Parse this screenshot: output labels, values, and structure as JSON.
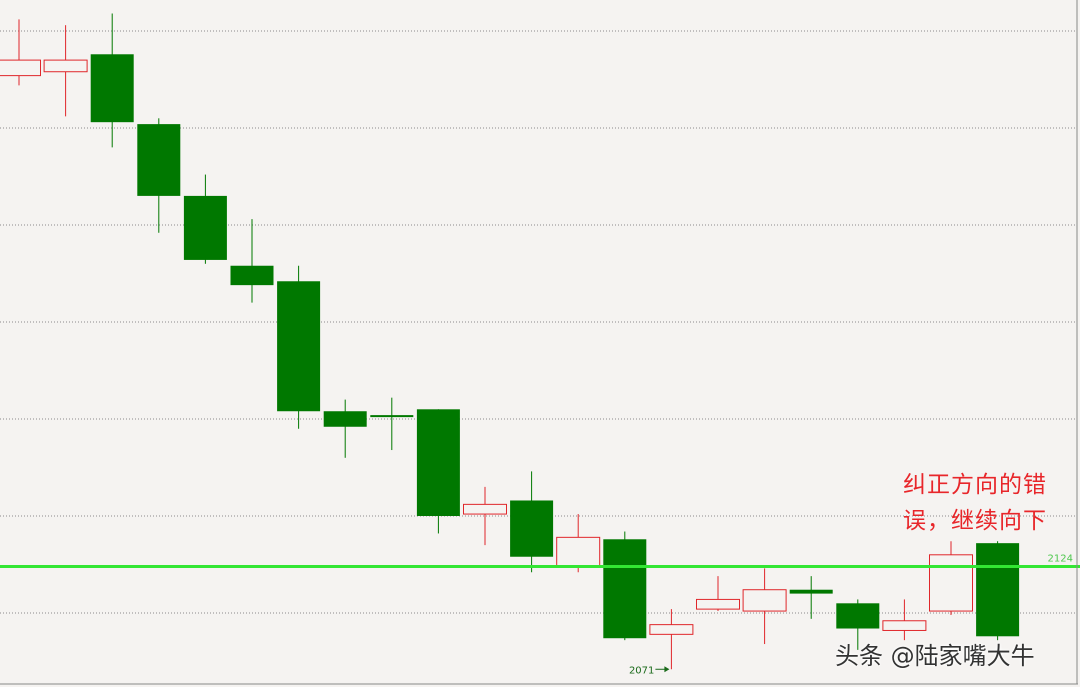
{
  "chart_data": {
    "type": "candlestick",
    "title": "",
    "xlabel": "",
    "ylabel": "",
    "ylim": [
      2065,
      2416
    ],
    "grid": true,
    "grid_levels": [
      2100,
      2150,
      2200,
      2250,
      2300,
      2350,
      2400
    ],
    "colors": {
      "up": "#e0262a",
      "down": "#007800",
      "reference_line": "#33e633",
      "background": "#f5f3f1"
    },
    "candles": [
      {
        "open": 2377,
        "high": 2406,
        "low": 2372,
        "close": 2385
      },
      {
        "open": 2379,
        "high": 2403,
        "low": 2356,
        "close": 2385
      },
      {
        "open": 2388,
        "high": 2409,
        "low": 2340,
        "close": 2353
      },
      {
        "open": 2352,
        "high": 2355,
        "low": 2296,
        "close": 2315
      },
      {
        "open": 2315,
        "high": 2326,
        "low": 2280,
        "close": 2282
      },
      {
        "open": 2279,
        "high": 2303,
        "low": 2260,
        "close": 2269
      },
      {
        "open": 2271,
        "high": 2279,
        "low": 2195,
        "close": 2204
      },
      {
        "open": 2204,
        "high": 2210,
        "low": 2180,
        "close": 2196
      },
      {
        "open": 2202,
        "high": 2211,
        "low": 2184,
        "close": 2201
      },
      {
        "open": 2205,
        "high": 2205,
        "low": 2141,
        "close": 2150
      },
      {
        "open": 2151,
        "high": 2165,
        "low": 2135,
        "close": 2156
      },
      {
        "open": 2158,
        "high": 2173,
        "low": 2121,
        "close": 2129
      },
      {
        "open": 2124,
        "high": 2151,
        "low": 2121,
        "close": 2139
      },
      {
        "open": 2138,
        "high": 2142,
        "low": 2086,
        "close": 2087
      },
      {
        "open": 2089,
        "high": 2102,
        "low": 2071,
        "close": 2094
      },
      {
        "open": 2102,
        "high": 2119,
        "low": 2101,
        "close": 2107
      },
      {
        "open": 2101,
        "high": 2123,
        "low": 2084,
        "close": 2112
      },
      {
        "open": 2112,
        "high": 2119,
        "low": 2097,
        "close": 2110
      },
      {
        "open": 2105,
        "high": 2107,
        "low": 2081,
        "close": 2092
      },
      {
        "open": 2091,
        "high": 2107,
        "low": 2086,
        "close": 2096
      },
      {
        "open": 2101,
        "high": 2137,
        "low": 2099,
        "close": 2130
      },
      {
        "open": 2136,
        "high": 2137,
        "low": 2086,
        "close": 2088
      }
    ],
    "reference_line": {
      "value": 2124,
      "label": "2124"
    },
    "low_marker": {
      "value": 2071,
      "label": "2071",
      "candle_index": 14
    },
    "annotation": {
      "line1": "纠正方向的错",
      "line2": "误，继续向下"
    }
  },
  "watermark": "头条 @陆家嘴大牛"
}
